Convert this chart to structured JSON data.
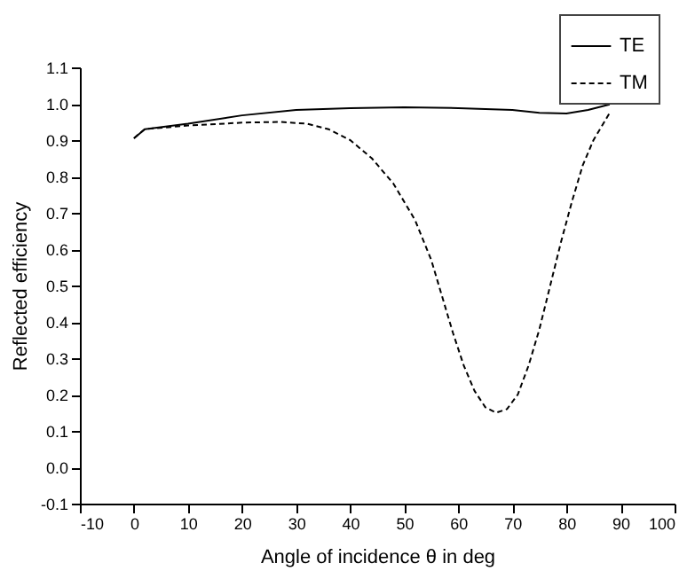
{
  "chart_data": {
    "type": "line",
    "xlabel": "Angle of incidence θ in deg",
    "ylabel": "Reflected efficiency",
    "xlim": [
      -10,
      100
    ],
    "xticks": [
      -10,
      0,
      10,
      20,
      30,
      40,
      50,
      60,
      70,
      80,
      90,
      100
    ],
    "ylim": [
      -0.1,
      1.1
    ],
    "yticks": [
      -0.1,
      {
        "value": 0,
        "label": "0.0"
      },
      0.1,
      0.2,
      0.3,
      0.4,
      0.5,
      0.6,
      0.7,
      0.8,
      0.9,
      {
        "value": 1,
        "label": "1.0"
      },
      1.1
    ],
    "grid": false,
    "legend": "top right",
    "marker": "none",
    "series": [
      {
        "name": "TE",
        "color": "#000000",
        "line_style": "solid",
        "x": [
          0,
          2,
          10,
          20,
          30,
          40,
          50,
          60,
          70,
          75,
          80,
          84,
          88
        ],
        "values": [
          0.905,
          0.93,
          0.945,
          0.968,
          0.983,
          0.988,
          0.99,
          0.988,
          0.983,
          0.975,
          0.973,
          0.983,
          0.998
        ]
      },
      {
        "name": "TM",
        "color": "#000000",
        "line_style": "dashed",
        "x": [
          0,
          2,
          10,
          20,
          27,
          32,
          36,
          40,
          44,
          48,
          52,
          55,
          57,
          59,
          61,
          63,
          65,
          67,
          69,
          71,
          73,
          75,
          77,
          79,
          81,
          83,
          85,
          87,
          88
        ],
        "values": [
          0.905,
          0.93,
          0.94,
          0.948,
          0.95,
          0.945,
          0.93,
          0.9,
          0.85,
          0.78,
          0.68,
          0.57,
          0.47,
          0.37,
          0.28,
          0.21,
          0.165,
          0.15,
          0.16,
          0.2,
          0.28,
          0.38,
          0.5,
          0.62,
          0.73,
          0.83,
          0.9,
          0.95,
          0.975
        ]
      }
    ]
  }
}
